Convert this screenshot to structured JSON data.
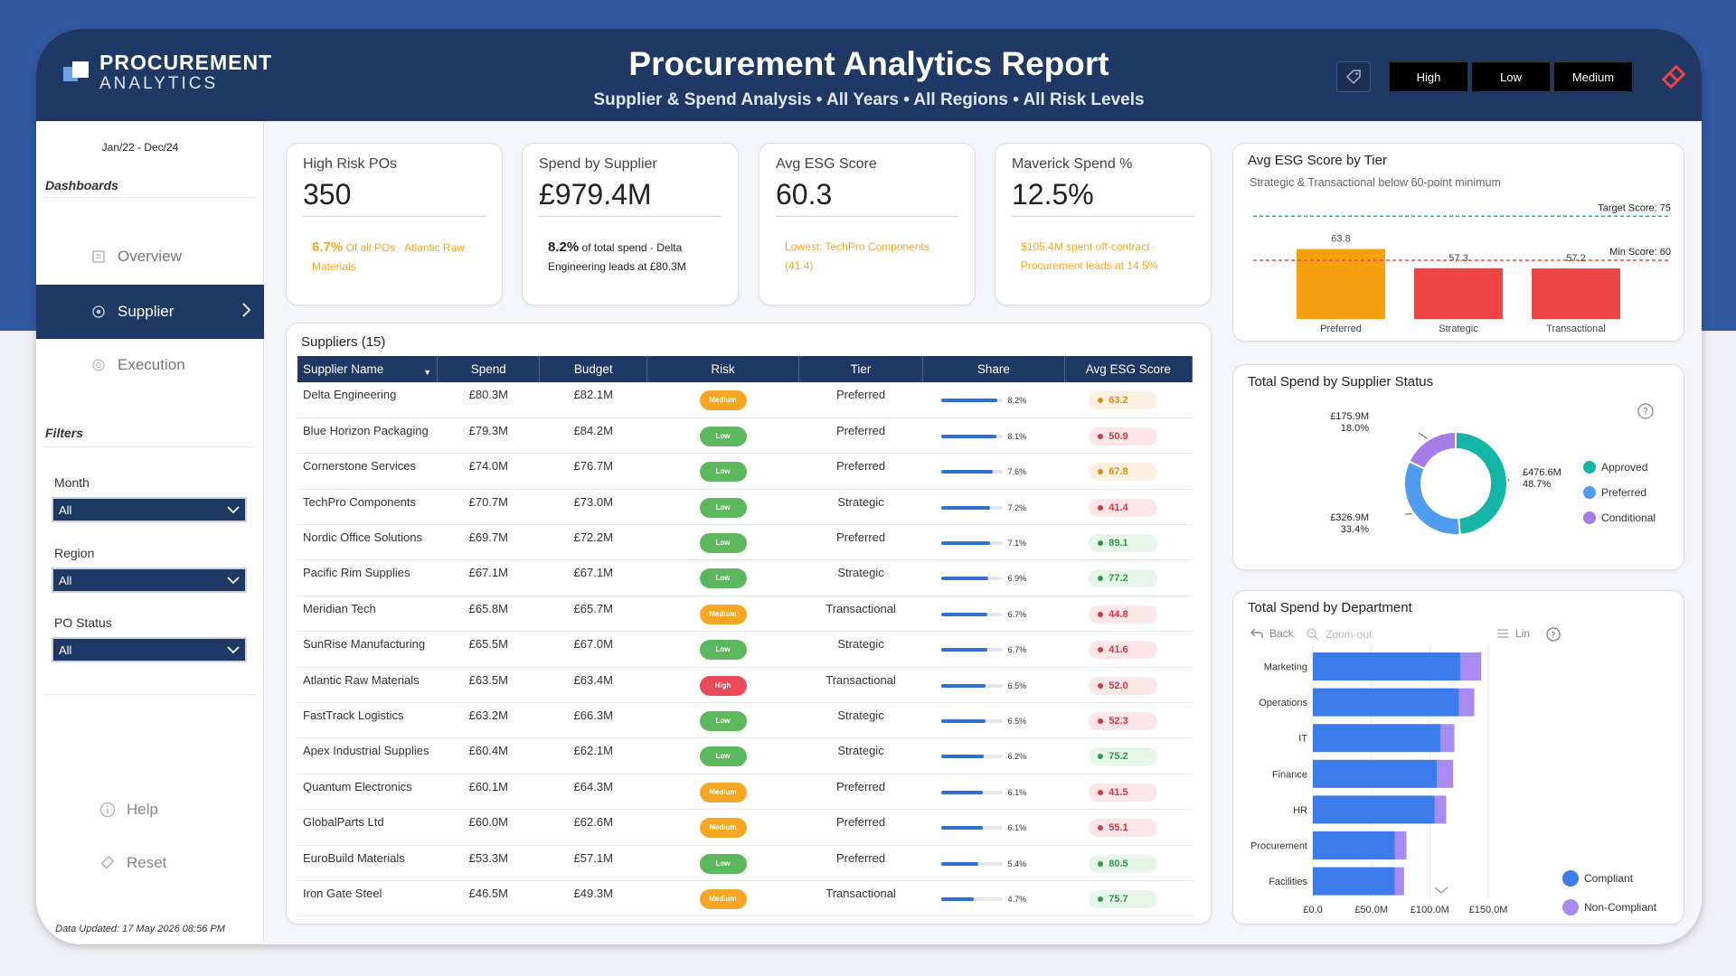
{
  "brand": {
    "line1": "PROCUREMENT",
    "line2": "ANALYTICS"
  },
  "header": {
    "title": "Procurement Analytics Report",
    "subtitle": "Supplier & Spend Analysis • All Years • All Regions • All Risk Levels",
    "risk_buttons": [
      "High",
      "Low",
      "Medium"
    ]
  },
  "sidebar": {
    "date_range": "Jan/22 - Dec/24",
    "dashboards_heading": "Dashboards",
    "nav": [
      {
        "label": "Overview",
        "icon": "report-icon",
        "active": false
      },
      {
        "label": "Supplier",
        "icon": "supplier-icon",
        "active": true
      },
      {
        "label": "Execution",
        "icon": "execution-icon",
        "active": false
      }
    ],
    "filters_heading": "Filters",
    "filters": [
      {
        "label": "Month",
        "value": "All"
      },
      {
        "label": "Region",
        "value": "All"
      },
      {
        "label": "PO Status",
        "value": "All"
      }
    ],
    "help": "Help",
    "reset": "Reset",
    "updated": "Data Updated: 17 May 2026 08:56 PM"
  },
  "kpis": [
    {
      "title": "High Risk POs",
      "value": "350",
      "note_strong": "6.7%",
      "note": " Of all POs · Atlantic Raw Materials",
      "dark": false
    },
    {
      "title": "Spend by Supplier",
      "value": "£979.4M",
      "note_strong": "8.2%",
      "note": " of total spend · Delta Engineering leads at £80.3M",
      "dark": true
    },
    {
      "title": "Avg ESG Score",
      "value": "60.3",
      "note_strong": "",
      "note": "Lowest: TechPro Components (41.4)",
      "dark": false
    },
    {
      "title": "Maverick Spend %",
      "value": "12.5%",
      "note_strong": "",
      "note": "$105.4M spent off-contract · Procurement leads at 14.5%",
      "dark": false
    }
  ],
  "table": {
    "title": "Suppliers (15)",
    "columns": [
      "Supplier Name",
      "Spend",
      "Budget",
      "Risk",
      "Tier",
      "Share",
      "Avg ESG Score"
    ],
    "rows": [
      {
        "name": "Delta Engineering",
        "spend": "£80.3M",
        "budget": "£82.1M",
        "risk": "Medium",
        "tier": "Preferred",
        "share": 8.2,
        "share_label": "8.2%",
        "esg": "63.2"
      },
      {
        "name": "Blue Horizon Packaging",
        "spend": "£79.3M",
        "budget": "£84.2M",
        "risk": "Low",
        "tier": "Preferred",
        "share": 8.1,
        "share_label": "8.1%",
        "esg": "50.9"
      },
      {
        "name": "Cornerstone Services",
        "spend": "£74.0M",
        "budget": "£76.7M",
        "risk": "Low",
        "tier": "Preferred",
        "share": 7.6,
        "share_label": "7.6%",
        "esg": "67.8"
      },
      {
        "name": "TechPro Components",
        "spend": "£70.7M",
        "budget": "£73.0M",
        "risk": "Low",
        "tier": "Strategic",
        "share": 7.2,
        "share_label": "7.2%",
        "esg": "41.4"
      },
      {
        "name": "Nordic Office Solutions",
        "spend": "£69.7M",
        "budget": "£72.2M",
        "risk": "Low",
        "tier": "Preferred",
        "share": 7.1,
        "share_label": "7.1%",
        "esg": "89.1"
      },
      {
        "name": "Pacific Rim Supplies",
        "spend": "£67.1M",
        "budget": "£67.1M",
        "risk": "Low",
        "tier": "Strategic",
        "share": 6.9,
        "share_label": "6.9%",
        "esg": "77.2"
      },
      {
        "name": "Meridian Tech",
        "spend": "£65.8M",
        "budget": "£65.7M",
        "risk": "Medium",
        "tier": "Transactional",
        "share": 6.7,
        "share_label": "6.7%",
        "esg": "44.8"
      },
      {
        "name": "SunRise Manufacturing",
        "spend": "£65.5M",
        "budget": "£67.0M",
        "risk": "Low",
        "tier": "Strategic",
        "share": 6.7,
        "share_label": "6.7%",
        "esg": "41.6"
      },
      {
        "name": "Atlantic Raw Materials",
        "spend": "£63.5M",
        "budget": "£63.4M",
        "risk": "High",
        "tier": "Transactional",
        "share": 6.5,
        "share_label": "6.5%",
        "esg": "52.0"
      },
      {
        "name": "FastTrack Logistics",
        "spend": "£63.2M",
        "budget": "£66.3M",
        "risk": "Low",
        "tier": "Strategic",
        "share": 6.5,
        "share_label": "6.5%",
        "esg": "52.3"
      },
      {
        "name": "Apex Industrial Supplies",
        "spend": "£60.4M",
        "budget": "£62.1M",
        "risk": "Low",
        "tier": "Strategic",
        "share": 6.2,
        "share_label": "6.2%",
        "esg": "75.2"
      },
      {
        "name": "Quantum Electronics",
        "spend": "£60.1M",
        "budget": "£64.3M",
        "risk": "Medium",
        "tier": "Preferred",
        "share": 6.1,
        "share_label": "6.1%",
        "esg": "41.5"
      },
      {
        "name": "GlobalParts Ltd",
        "spend": "£60.0M",
        "budget": "£62.6M",
        "risk": "Medium",
        "tier": "Preferred",
        "share": 6.1,
        "share_label": "6.1%",
        "esg": "55.1"
      },
      {
        "name": "EuroBuild Materials",
        "spend": "£53.3M",
        "budget": "£57.1M",
        "risk": "Low",
        "tier": "Preferred",
        "share": 5.4,
        "share_label": "5.4%",
        "esg": "80.5"
      },
      {
        "name": "Iron Gate Steel",
        "spend": "£46.5M",
        "budget": "£49.3M",
        "risk": "Medium",
        "tier": "Transactional",
        "share": 4.7,
        "share_label": "4.7%",
        "esg": "75.7"
      }
    ]
  },
  "colors": {
    "navy": "#1f3864",
    "medium": "#f5a623",
    "low": "#5cb85c",
    "high": "#e84b5a",
    "share": "#2f6fd6",
    "approved": "#13b5a6",
    "preferred": "#4f9bf0",
    "conditional": "#a67ce6",
    "compliant": "#3b7bea",
    "noncompliant": "#a98af0"
  },
  "esg_panel": {
    "title": "Avg ESG Score by Tier",
    "subtitle": "Strategic & Transactional below 60-point minimum",
    "target_label": "Target Score: 75",
    "min_label": "Min Score: 60"
  },
  "status_panel": {
    "title": "Total Spend by Supplier Status"
  },
  "dept_panel": {
    "title": "Total Spend by Department",
    "back": "Back",
    "zoom_out": "Zoom-out",
    "lin": "Lin"
  },
  "chart_data": [
    {
      "type": "bar",
      "title": "Avg ESG Score by Tier",
      "categories": [
        "Preferred",
        "Strategic",
        "Transactional"
      ],
      "values": [
        63.8,
        57.3,
        57.2
      ],
      "labels": [
        "63.8",
        "57.3",
        "57.2"
      ],
      "colors": [
        "#f5a00f",
        "#ef4444",
        "#ef4444"
      ],
      "reference_lines": [
        {
          "label": "Target Score: 75",
          "value": 75,
          "color": "#13b5a6"
        },
        {
          "label": "Min Score: 60",
          "value": 60,
          "color": "#ef4444"
        }
      ],
      "ylim": [
        0,
        80
      ]
    },
    {
      "type": "pie",
      "title": "Total Spend by Supplier Status",
      "categories": [
        "Approved",
        "Preferred",
        "Conditional"
      ],
      "values": [
        476.6,
        326.9,
        175.9
      ],
      "labels": [
        "£476.6M\n48.7%",
        "£326.9M\n33.4%",
        "£175.9M\n18.0%"
      ],
      "colors": [
        "#13b5a6",
        "#4f9bf0",
        "#a67ce6"
      ],
      "legend": "right"
    },
    {
      "type": "bar",
      "orientation": "horizontal",
      "stacked": true,
      "title": "Total Spend by Department",
      "categories": [
        "Marketing",
        "Operations",
        "IT",
        "Finance",
        "HR",
        "Procurement",
        "Facilities"
      ],
      "series": [
        {
          "name": "Compliant",
          "values": [
            126,
            125,
            109,
            106,
            104,
            70,
            70
          ]
        },
        {
          "name": "Non-Compliant",
          "values": [
            18,
            13,
            12,
            14,
            10,
            10,
            8
          ]
        }
      ],
      "x_ticks": [
        "£0.0",
        "£50.0M",
        "£100.0M",
        "£150.0M"
      ],
      "xlim": [
        0,
        150
      ],
      "legend": "bottom-right"
    }
  ]
}
